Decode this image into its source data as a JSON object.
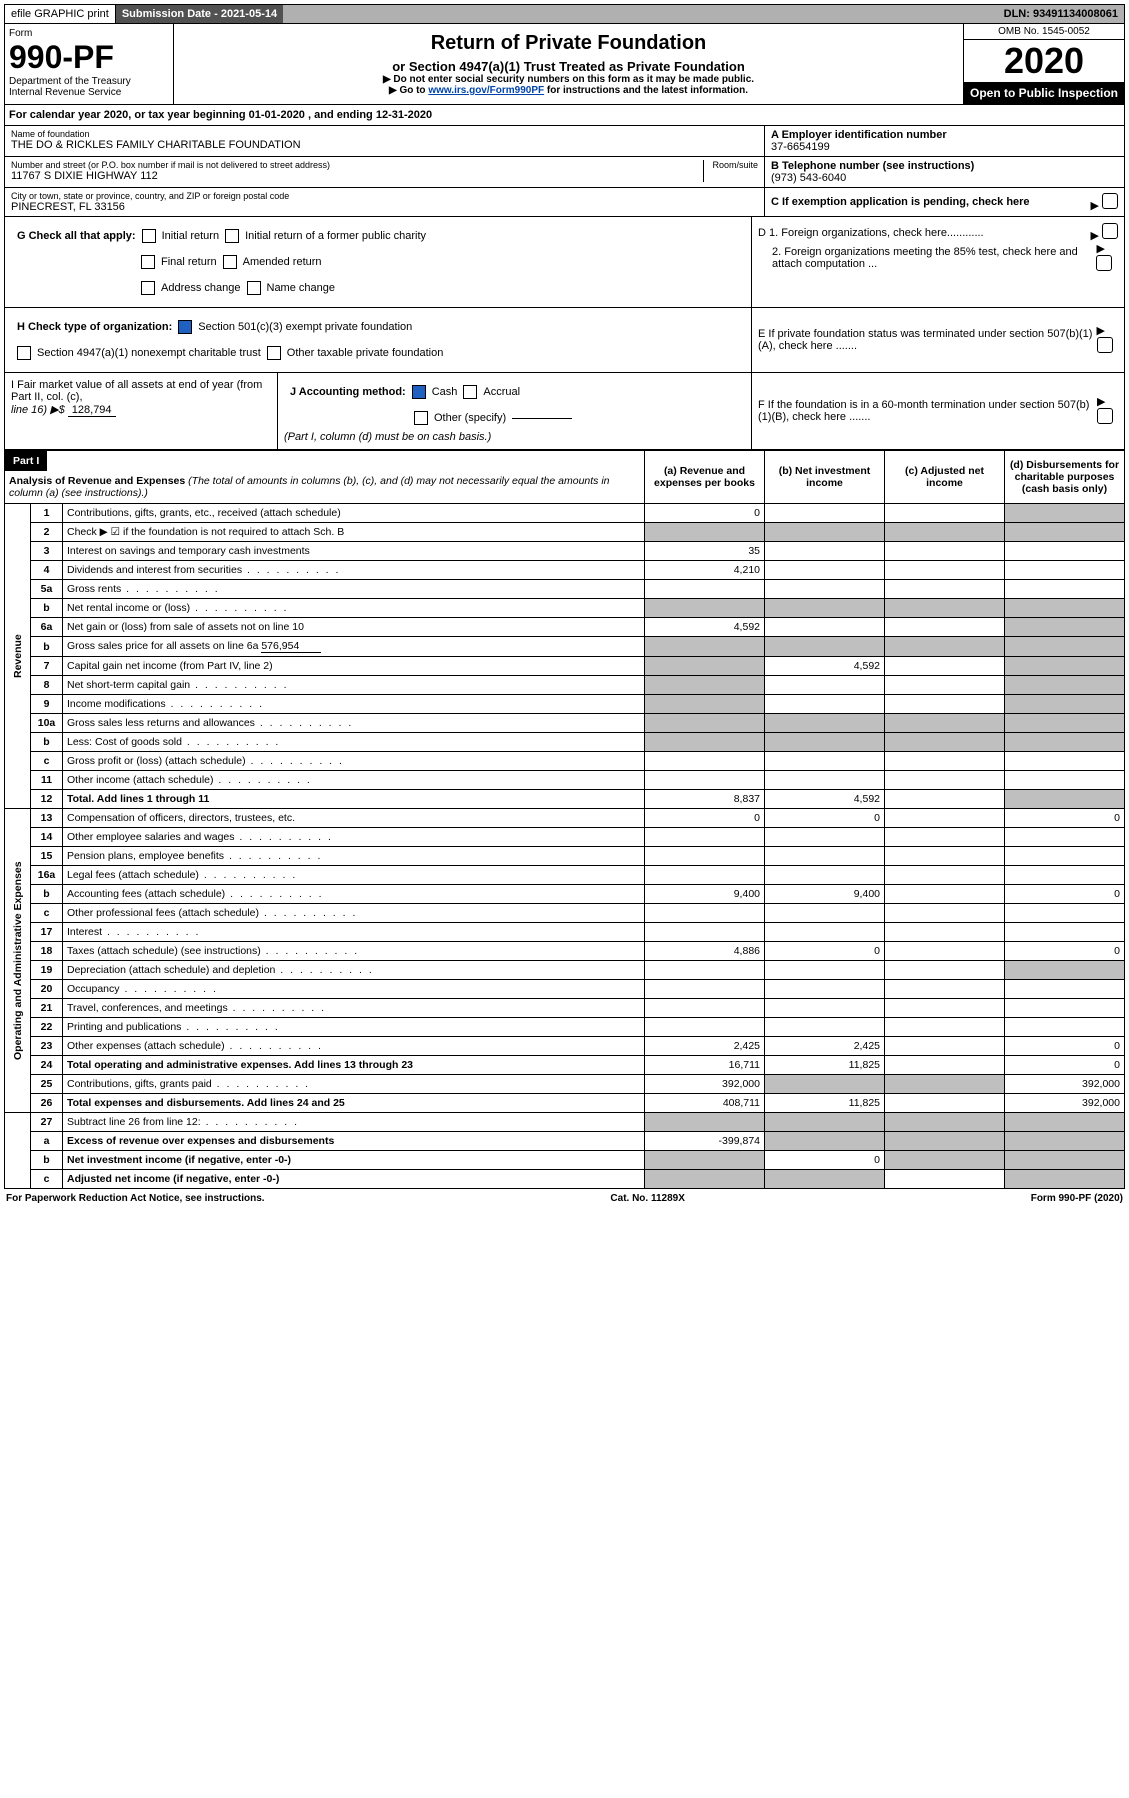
{
  "topbar": {
    "efile": "efile GRAPHIC print",
    "submission": "Submission Date - 2021-05-14",
    "dln": "DLN: 93491134008061"
  },
  "header": {
    "form_label": "Form",
    "form_number": "990-PF",
    "dept": "Department of the Treasury",
    "irs": "Internal Revenue Service",
    "title": "Return of Private Foundation",
    "subtitle": "or Section 4947(a)(1) Trust Treated as Private Foundation",
    "instr1": "▶ Do not enter social security numbers on this form as it may be made public.",
    "instr2_prefix": "▶ Go to ",
    "instr2_link": "www.irs.gov/Form990PF",
    "instr2_suffix": " for instructions and the latest information.",
    "omb": "OMB No. 1545-0052",
    "year": "2020",
    "open": "Open to Public Inspection"
  },
  "calendar": {
    "text_prefix": "For calendar year 2020, or tax year beginning ",
    "begin": "01-01-2020",
    "text_mid": " , and ending ",
    "end": "12-31-2020"
  },
  "info": {
    "name_label": "Name of foundation",
    "name": "THE DO & RICKLES FAMILY CHARITABLE FOUNDATION",
    "addr_label": "Number and street (or P.O. box number if mail is not delivered to street address)",
    "addr": "11767 S DIXIE HIGHWAY 112",
    "room_label": "Room/suite",
    "city_label": "City or town, state or province, country, and ZIP or foreign postal code",
    "city": "PINECREST, FL  33156",
    "a_label": "A Employer identification number",
    "a_val": "37-6654199",
    "b_label": "B Telephone number (see instructions)",
    "b_val": "(973) 543-6040",
    "c_label": "C If exemption application is pending, check here"
  },
  "g": {
    "label": "G Check all that apply:",
    "opts": [
      "Initial return",
      "Initial return of a former public charity",
      "Final return",
      "Amended return",
      "Address change",
      "Name change"
    ]
  },
  "h": {
    "label": "H Check type of organization:",
    "opt1": "Section 501(c)(3) exempt private foundation",
    "opt2": "Section 4947(a)(1) nonexempt charitable trust",
    "opt3": "Other taxable private foundation"
  },
  "d": {
    "d1": "D 1. Foreign organizations, check here............",
    "d2": "2. Foreign organizations meeting the 85% test, check here and attach computation ..."
  },
  "e": {
    "label": "E  If private foundation status was terminated under section 507(b)(1)(A), check here ......."
  },
  "i": {
    "label": "I Fair market value of all assets at end of year (from Part II, col. (c),",
    "line": "line 16) ▶$",
    "val": "128,794"
  },
  "j": {
    "label": "J Accounting method:",
    "cash": "Cash",
    "accrual": "Accrual",
    "other": "Other (specify)",
    "note": "(Part I, column (d) must be on cash basis.)"
  },
  "f": {
    "label": "F  If the foundation is in a 60-month termination under section 507(b)(1)(B), check here ......."
  },
  "part1": {
    "label": "Part I",
    "title": "Analysis of Revenue and Expenses",
    "note": "(The total of amounts in columns (b), (c), and (d) may not necessarily equal the amounts in column (a) (see instructions).)",
    "col_a": "(a)  Revenue and expenses per books",
    "col_b": "(b)  Net investment income",
    "col_c": "(c)  Adjusted net income",
    "col_d": "(d)  Disbursements for charitable purposes (cash basis only)"
  },
  "side_labels": {
    "revenue": "Revenue",
    "expenses": "Operating and Administrative Expenses"
  },
  "rows": [
    {
      "n": "1",
      "desc": "Contributions, gifts, grants, etc., received (attach schedule)",
      "a": "0"
    },
    {
      "n": "2",
      "desc": "Check ▶ ☑ if the foundation is not required to attach Sch. B"
    },
    {
      "n": "3",
      "desc": "Interest on savings and temporary cash investments",
      "a": "35"
    },
    {
      "n": "4",
      "desc": "Dividends and interest from securities",
      "a": "4,210"
    },
    {
      "n": "5a",
      "desc": "Gross rents"
    },
    {
      "n": "b",
      "desc": "Net rental income or (loss)"
    },
    {
      "n": "6a",
      "desc": "Net gain or (loss) from sale of assets not on line 10",
      "a": "4,592"
    },
    {
      "n": "b",
      "desc": "Gross sales price for all assets on line 6a",
      "inline": "576,954"
    },
    {
      "n": "7",
      "desc": "Capital gain net income (from Part IV, line 2)",
      "b": "4,592"
    },
    {
      "n": "8",
      "desc": "Net short-term capital gain"
    },
    {
      "n": "9",
      "desc": "Income modifications"
    },
    {
      "n": "10a",
      "desc": "Gross sales less returns and allowances"
    },
    {
      "n": "b",
      "desc": "Less: Cost of goods sold"
    },
    {
      "n": "c",
      "desc": "Gross profit or (loss) (attach schedule)"
    },
    {
      "n": "11",
      "desc": "Other income (attach schedule)"
    },
    {
      "n": "12",
      "desc": "Total. Add lines 1 through 11",
      "bold": true,
      "a": "8,837",
      "b": "4,592"
    },
    {
      "n": "13",
      "desc": "Compensation of officers, directors, trustees, etc.",
      "a": "0",
      "b": "0",
      "d": "0"
    },
    {
      "n": "14",
      "desc": "Other employee salaries and wages"
    },
    {
      "n": "15",
      "desc": "Pension plans, employee benefits"
    },
    {
      "n": "16a",
      "desc": "Legal fees (attach schedule)"
    },
    {
      "n": "b",
      "desc": "Accounting fees (attach schedule)",
      "a": "9,400",
      "b": "9,400",
      "d": "0"
    },
    {
      "n": "c",
      "desc": "Other professional fees (attach schedule)"
    },
    {
      "n": "17",
      "desc": "Interest"
    },
    {
      "n": "18",
      "desc": "Taxes (attach schedule) (see instructions)",
      "a": "4,886",
      "b": "0",
      "d": "0"
    },
    {
      "n": "19",
      "desc": "Depreciation (attach schedule) and depletion"
    },
    {
      "n": "20",
      "desc": "Occupancy"
    },
    {
      "n": "21",
      "desc": "Travel, conferences, and meetings"
    },
    {
      "n": "22",
      "desc": "Printing and publications"
    },
    {
      "n": "23",
      "desc": "Other expenses (attach schedule)",
      "a": "2,425",
      "b": "2,425",
      "d": "0"
    },
    {
      "n": "24",
      "desc": "Total operating and administrative expenses. Add lines 13 through 23",
      "bold": true,
      "a": "16,711",
      "b": "11,825",
      "d": "0"
    },
    {
      "n": "25",
      "desc": "Contributions, gifts, grants paid",
      "a": "392,000",
      "d": "392,000"
    },
    {
      "n": "26",
      "desc": "Total expenses and disbursements. Add lines 24 and 25",
      "bold": true,
      "a": "408,711",
      "b": "11,825",
      "d": "392,000"
    },
    {
      "n": "27",
      "desc": "Subtract line 26 from line 12:"
    },
    {
      "n": "a",
      "desc": "Excess of revenue over expenses and disbursements",
      "bold": true,
      "a": "-399,874"
    },
    {
      "n": "b",
      "desc": "Net investment income (if negative, enter -0-)",
      "bold": true,
      "b": "0"
    },
    {
      "n": "c",
      "desc": "Adjusted net income (if negative, enter -0-)",
      "bold": true
    }
  ],
  "grey_map": {
    "1": [
      "d"
    ],
    "2": [
      "a",
      "b",
      "c",
      "d"
    ],
    "5b": [
      "a",
      "b",
      "c",
      "d"
    ],
    "6a": [
      "d"
    ],
    "6b": [
      "a",
      "b",
      "c",
      "d"
    ],
    "7": [
      "a",
      "d"
    ],
    "8": [
      "a",
      "d"
    ],
    "9": [
      "a",
      "d"
    ],
    "10a": [
      "a",
      "b",
      "c",
      "d"
    ],
    "10b": [
      "a",
      "b",
      "c",
      "d"
    ],
    "12": [
      "d"
    ],
    "19": [
      "d"
    ],
    "25": [
      "b",
      "c"
    ],
    "27": [
      "a",
      "b",
      "c",
      "d"
    ],
    "27a": [
      "b",
      "c",
      "d"
    ],
    "27b": [
      "a",
      "c",
      "d"
    ],
    "27c": [
      "a",
      "b",
      "d"
    ]
  },
  "footer": {
    "left": "For Paperwork Reduction Act Notice, see instructions.",
    "mid": "Cat. No. 11289X",
    "right": "Form 990-PF (2020)"
  }
}
